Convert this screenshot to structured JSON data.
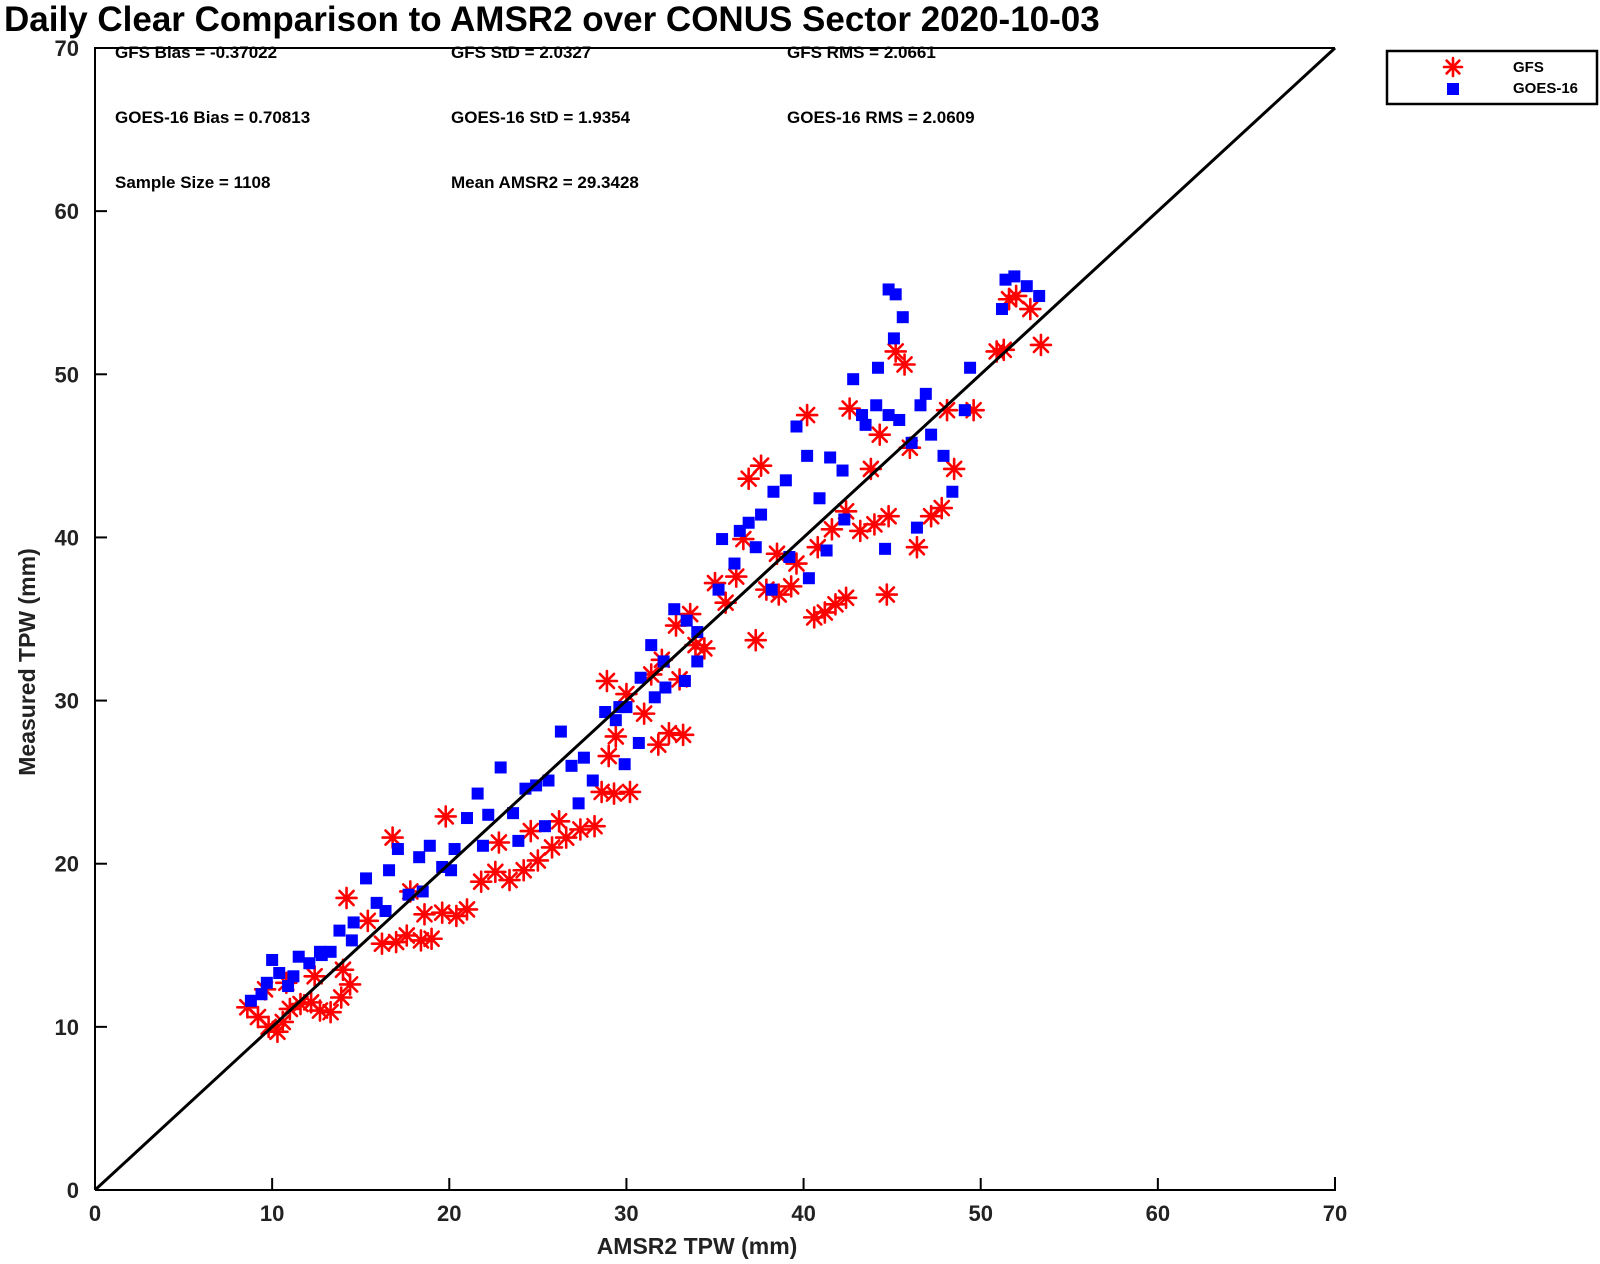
{
  "chart_data": {
    "type": "scatter",
    "title": "Daily Clear Comparison to AMSR2 over CONUS Sector 2020-10-03",
    "xlabel": "AMSR2 TPW (mm)",
    "ylabel": "Measured TPW (mm)",
    "xlim": [
      0,
      70
    ],
    "ylim": [
      0,
      70
    ],
    "xticks": [
      "0",
      "10",
      "20",
      "30",
      "40",
      "50",
      "60",
      "70"
    ],
    "yticks": [
      "0",
      "10",
      "20",
      "30",
      "40",
      "50",
      "60",
      "70"
    ],
    "grid": false,
    "legend_position": "top-right-outside",
    "reference_line": {
      "name": "1:1 line",
      "color": "#000000",
      "from": [
        0,
        0
      ],
      "to": [
        70,
        70
      ]
    },
    "stats": {
      "gfs_bias": "GFS Bias = -0.37022",
      "gfs_std": "GFS StD = 2.0327",
      "gfs_rms": "GFS RMS = 2.0661",
      "goes_bias": "GOES-16 Bias = 0.70813",
      "goes_std": "GOES-16 StD = 1.9354",
      "goes_rms": "GOES-16 RMS = 2.0609",
      "sample_size": "Sample Size = 1108",
      "mean_amsr2": "Mean AMSR2 = 29.3428"
    },
    "series": [
      {
        "name": "GFS",
        "marker": "asterisk",
        "color": "#ff0000",
        "points": [
          [
            8.6,
            11.2
          ],
          [
            9.2,
            10.6
          ],
          [
            9.8,
            10.0
          ],
          [
            10.3,
            9.7
          ],
          [
            10.6,
            10.3
          ],
          [
            11.0,
            11.1
          ],
          [
            11.6,
            11.4
          ],
          [
            12.2,
            11.5
          ],
          [
            12.7,
            11.0
          ],
          [
            13.3,
            10.9
          ],
          [
            13.9,
            11.8
          ],
          [
            14.4,
            12.6
          ],
          [
            9.6,
            12.3
          ],
          [
            10.8,
            12.7
          ],
          [
            12.4,
            13.1
          ],
          [
            14.0,
            13.5
          ],
          [
            14.2,
            17.9
          ],
          [
            15.4,
            16.5
          ],
          [
            16.2,
            15.1
          ],
          [
            17.0,
            15.2
          ],
          [
            17.6,
            15.6
          ],
          [
            18.4,
            15.3
          ],
          [
            19.0,
            15.4
          ],
          [
            16.8,
            21.6
          ],
          [
            17.8,
            18.3
          ],
          [
            18.6,
            16.9
          ],
          [
            19.6,
            17.0
          ],
          [
            20.4,
            16.8
          ],
          [
            21.0,
            17.2
          ],
          [
            19.8,
            22.9
          ],
          [
            21.8,
            18.9
          ],
          [
            22.6,
            19.5
          ],
          [
            23.4,
            19.0
          ],
          [
            24.2,
            19.6
          ],
          [
            25.0,
            20.2
          ],
          [
            25.8,
            21.0
          ],
          [
            26.6,
            21.6
          ],
          [
            27.4,
            22.1
          ],
          [
            28.2,
            22.3
          ],
          [
            22.8,
            21.3
          ],
          [
            24.6,
            22.0
          ],
          [
            26.2,
            22.6
          ],
          [
            28.6,
            24.4
          ],
          [
            29.3,
            24.3
          ],
          [
            30.2,
            24.4
          ],
          [
            29.0,
            26.6
          ],
          [
            29.4,
            27.8
          ],
          [
            28.9,
            31.2
          ],
          [
            30.0,
            30.4
          ],
          [
            31.0,
            29.2
          ],
          [
            31.8,
            27.3
          ],
          [
            32.4,
            28.0
          ],
          [
            33.2,
            27.9
          ],
          [
            31.4,
            31.6
          ],
          [
            32.0,
            32.5
          ],
          [
            32.8,
            34.6
          ],
          [
            33.6,
            35.3
          ],
          [
            33.9,
            33.4
          ],
          [
            34.4,
            33.2
          ],
          [
            33.0,
            31.3
          ],
          [
            35.0,
            37.2
          ],
          [
            35.6,
            36.0
          ],
          [
            36.2,
            37.6
          ],
          [
            36.9,
            43.6
          ],
          [
            37.6,
            44.4
          ],
          [
            37.3,
            33.7
          ],
          [
            37.9,
            36.8
          ],
          [
            38.6,
            36.5
          ],
          [
            39.3,
            37.0
          ],
          [
            40.2,
            47.5
          ],
          [
            40.6,
            35.1
          ],
          [
            41.2,
            35.4
          ],
          [
            41.8,
            35.9
          ],
          [
            42.4,
            36.3
          ],
          [
            40.8,
            39.4
          ],
          [
            41.6,
            40.5
          ],
          [
            42.4,
            41.6
          ],
          [
            43.2,
            40.4
          ],
          [
            44.0,
            40.8
          ],
          [
            44.8,
            41.3
          ],
          [
            42.6,
            47.9
          ],
          [
            43.8,
            44.2
          ],
          [
            44.7,
            36.5
          ],
          [
            45.2,
            51.4
          ],
          [
            45.7,
            50.6
          ],
          [
            46.4,
            39.4
          ],
          [
            47.2,
            41.3
          ],
          [
            47.8,
            41.8
          ],
          [
            48.5,
            44.2
          ],
          [
            48.1,
            47.8
          ],
          [
            49.6,
            47.8
          ],
          [
            50.9,
            51.4
          ],
          [
            51.3,
            51.5
          ],
          [
            51.6,
            54.6
          ],
          [
            52.0,
            54.8
          ],
          [
            52.8,
            54.0
          ],
          [
            53.4,
            51.8
          ],
          [
            46.0,
            45.5
          ],
          [
            44.3,
            46.3
          ],
          [
            38.5,
            39.0
          ],
          [
            39.6,
            38.4
          ],
          [
            36.6,
            39.9
          ]
        ]
      },
      {
        "name": "GOES-16",
        "marker": "square",
        "color": "#0000ff",
        "points": [
          [
            8.8,
            11.6
          ],
          [
            9.4,
            12.0
          ],
          [
            10.0,
            14.1
          ],
          [
            10.4,
            13.3
          ],
          [
            10.9,
            12.5
          ],
          [
            11.5,
            14.3
          ],
          [
            12.1,
            13.9
          ],
          [
            12.7,
            14.6
          ],
          [
            13.3,
            14.6
          ],
          [
            13.8,
            15.9
          ],
          [
            14.6,
            16.4
          ],
          [
            15.3,
            19.1
          ],
          [
            15.9,
            17.6
          ],
          [
            16.6,
            19.6
          ],
          [
            17.1,
            20.9
          ],
          [
            17.7,
            18.1
          ],
          [
            18.3,
            20.4
          ],
          [
            18.9,
            21.1
          ],
          [
            19.6,
            19.8
          ],
          [
            20.3,
            20.9
          ],
          [
            21.0,
            22.8
          ],
          [
            21.6,
            24.3
          ],
          [
            22.2,
            23.0
          ],
          [
            22.9,
            25.9
          ],
          [
            23.6,
            23.1
          ],
          [
            24.3,
            24.6
          ],
          [
            24.9,
            24.8
          ],
          [
            25.6,
            25.1
          ],
          [
            26.3,
            28.1
          ],
          [
            26.9,
            26.0
          ],
          [
            27.6,
            26.5
          ],
          [
            28.1,
            25.1
          ],
          [
            28.8,
            29.3
          ],
          [
            29.4,
            28.8
          ],
          [
            30.0,
            29.6
          ],
          [
            30.8,
            31.4
          ],
          [
            31.4,
            33.4
          ],
          [
            32.1,
            32.4
          ],
          [
            32.7,
            35.6
          ],
          [
            33.4,
            34.9
          ],
          [
            34.0,
            34.2
          ],
          [
            33.3,
            31.2
          ],
          [
            31.6,
            30.2
          ],
          [
            29.9,
            26.1
          ],
          [
            35.2,
            36.8
          ],
          [
            36.1,
            38.4
          ],
          [
            36.9,
            40.9
          ],
          [
            37.6,
            41.4
          ],
          [
            38.3,
            42.8
          ],
          [
            39.0,
            43.5
          ],
          [
            39.6,
            46.8
          ],
          [
            40.2,
            45.0
          ],
          [
            40.9,
            42.4
          ],
          [
            41.5,
            44.9
          ],
          [
            42.2,
            44.1
          ],
          [
            42.8,
            49.7
          ],
          [
            43.5,
            46.9
          ],
          [
            44.1,
            48.1
          ],
          [
            44.8,
            47.5
          ],
          [
            45.4,
            47.2
          ],
          [
            46.1,
            45.8
          ],
          [
            46.6,
            48.1
          ],
          [
            47.2,
            46.3
          ],
          [
            47.9,
            45.0
          ],
          [
            48.4,
            42.8
          ],
          [
            44.8,
            55.2
          ],
          [
            45.2,
            54.9
          ],
          [
            45.6,
            53.5
          ],
          [
            45.1,
            52.2
          ],
          [
            44.2,
            50.4
          ],
          [
            43.3,
            47.5
          ],
          [
            42.3,
            41.1
          ],
          [
            41.3,
            39.2
          ],
          [
            40.3,
            37.5
          ],
          [
            39.2,
            38.8
          ],
          [
            38.2,
            36.8
          ],
          [
            37.3,
            39.4
          ],
          [
            36.4,
            40.4
          ],
          [
            35.4,
            39.9
          ],
          [
            34.0,
            32.4
          ],
          [
            32.2,
            30.8
          ],
          [
            30.7,
            27.4
          ],
          [
            29.6,
            29.6
          ],
          [
            27.3,
            23.7
          ],
          [
            25.4,
            22.3
          ],
          [
            23.9,
            21.4
          ],
          [
            21.9,
            21.1
          ],
          [
            20.1,
            19.6
          ],
          [
            18.5,
            18.3
          ],
          [
            16.4,
            17.1
          ],
          [
            14.5,
            15.3
          ],
          [
            12.8,
            14.4
          ],
          [
            11.2,
            13.1
          ],
          [
            9.7,
            12.7
          ],
          [
            49.4,
            50.4
          ],
          [
            49.1,
            47.8
          ],
          [
            51.2,
            54.0
          ],
          [
            51.4,
            55.8
          ],
          [
            51.9,
            56.0
          ],
          [
            52.6,
            55.4
          ],
          [
            53.3,
            54.8
          ],
          [
            44.6,
            39.3
          ],
          [
            46.4,
            40.6
          ],
          [
            46.9,
            48.8
          ]
        ]
      }
    ]
  }
}
